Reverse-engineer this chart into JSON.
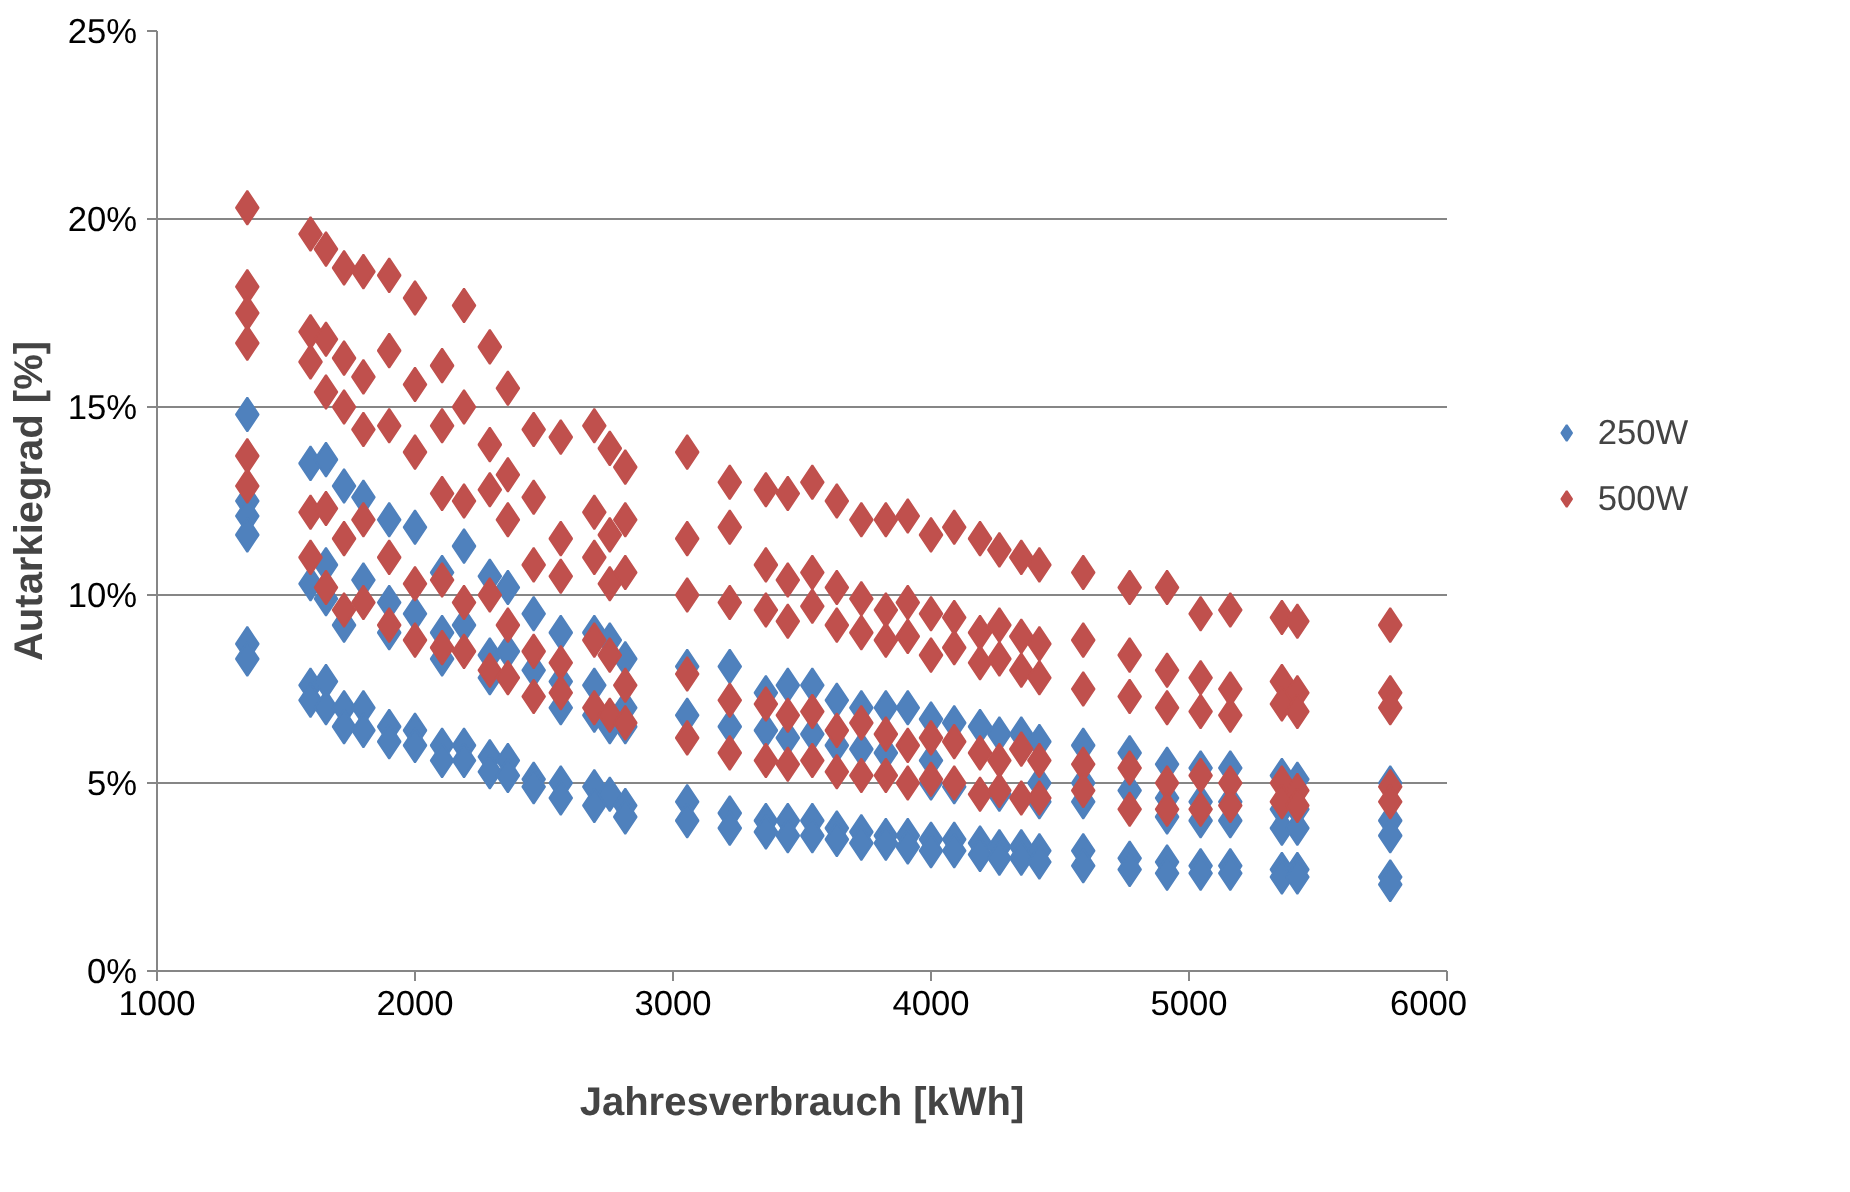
{
  "chart_data": {
    "type": "scatter",
    "xlabel": "Jahresverbrauch [kWh]",
    "ylabel": "Autarkiegrad [%]",
    "xlim": [
      1000,
      6000
    ],
    "xticks": [
      1000,
      2000,
      3000,
      4000,
      5000,
      6000
    ],
    "ylim": [
      0,
      25
    ],
    "yticks": [
      {
        "value": 0,
        "label": "0%"
      },
      {
        "value": 5,
        "label": "5%"
      },
      {
        "value": 10,
        "label": "10%"
      },
      {
        "value": 15,
        "label": "15%"
      },
      {
        "value": 20,
        "label": "20%"
      },
      {
        "value": 25,
        "label": "25%"
      }
    ],
    "grid": "y",
    "legend": "right",
    "marker": "diamond",
    "x": [
      1350,
      1350,
      1350,
      1350,
      1350,
      1350,
      1595,
      1595,
      1595,
      1595,
      1595,
      1655,
      1655,
      1655,
      1655,
      1655,
      1725,
      1725,
      1725,
      1725,
      1725,
      1800,
      1800,
      1800,
      1800,
      1800,
      1900,
      1900,
      1900,
      1900,
      1900,
      2000,
      2000,
      2000,
      2000,
      2000,
      2105,
      2105,
      2105,
      2105,
      2105,
      2190,
      2190,
      2190,
      2190,
      2190,
      2290,
      2290,
      2290,
      2290,
      2290,
      2360,
      2360,
      2360,
      2360,
      2360,
      2460,
      2460,
      2460,
      2460,
      2460,
      2565,
      2565,
      2565,
      2565,
      2565,
      2695,
      2695,
      2695,
      2695,
      2695,
      2755,
      2755,
      2755,
      2755,
      2755,
      2815,
      2815,
      2815,
      2815,
      2815,
      3055,
      3055,
      3055,
      3055,
      3055,
      3220,
      3220,
      3220,
      3220,
      3220,
      3360,
      3360,
      3360,
      3360,
      3360,
      3445,
      3445,
      3445,
      3445,
      3445,
      3540,
      3540,
      3540,
      3540,
      3540,
      3635,
      3635,
      3635,
      3635,
      3635,
      3730,
      3730,
      3730,
      3730,
      3730,
      3825,
      3825,
      3825,
      3825,
      3825,
      3910,
      3910,
      3910,
      3910,
      3910,
      4000,
      4000,
      4000,
      4000,
      4000,
      4090,
      4090,
      4090,
      4090,
      4090,
      4190,
      4190,
      4190,
      4190,
      4190,
      4265,
      4265,
      4265,
      4265,
      4265,
      4350,
      4350,
      4350,
      4350,
      4350,
      4420,
      4420,
      4420,
      4420,
      4420,
      4590,
      4590,
      4590,
      4590,
      4590,
      4770,
      4770,
      4770,
      4770,
      4770,
      4915,
      4915,
      4915,
      4915,
      4915,
      5045,
      5045,
      5045,
      5045,
      5045,
      5160,
      5160,
      5160,
      5160,
      5160,
      5360,
      5360,
      5360,
      5360,
      5360,
      5420,
      5420,
      5420,
      5420,
      5420,
      5780,
      5780,
      5780,
      5780,
      5780
    ],
    "series": [
      {
        "name": "250W",
        "color": "#4f81bd",
        "values": [
          14.8,
          12.5,
          12.1,
          11.6,
          8.7,
          8.3,
          13.5,
          null,
          10.3,
          7.6,
          7.2,
          13.6,
          10.8,
          9.9,
          7.7,
          7.0,
          12.9,
          null,
          9.2,
          7.0,
          6.5,
          12.6,
          10.4,
          null,
          7.0,
          6.4,
          12.0,
          9.8,
          9.0,
          6.5,
          6.1,
          11.8,
          9.5,
          null,
          6.4,
          6.0,
          10.6,
          9.0,
          8.3,
          6.0,
          5.6,
          11.3,
          9.2,
          null,
          6.0,
          5.6,
          10.5,
          8.4,
          7.8,
          5.7,
          5.3,
          10.2,
          8.5,
          null,
          5.6,
          5.2,
          9.5,
          8.0,
          null,
          5.1,
          4.9,
          9.0,
          7.7,
          7.0,
          5.0,
          4.6,
          9.0,
          7.6,
          6.8,
          4.9,
          4.4,
          8.8,
          null,
          6.5,
          4.7,
          null,
          8.3,
          7.0,
          6.5,
          4.4,
          4.1,
          8.1,
          6.8,
          null,
          4.5,
          4.0,
          8.1,
          6.5,
          null,
          4.2,
          3.8,
          7.4,
          6.4,
          null,
          4.0,
          3.7,
          7.6,
          6.2,
          null,
          4.0,
          3.6,
          7.6,
          6.3,
          null,
          4.0,
          3.6,
          7.2,
          6.0,
          null,
          3.8,
          3.5,
          7.0,
          5.9,
          null,
          3.7,
          3.4,
          7.0,
          5.8,
          null,
          3.6,
          3.4,
          7.0,
          null,
          null,
          3.6,
          3.3,
          6.7,
          5.6,
          5.0,
          3.5,
          3.2,
          6.6,
          null,
          4.9,
          3.5,
          3.2,
          6.5,
          null,
          null,
          3.4,
          3.1,
          6.3,
          null,
          4.7,
          3.3,
          3.0,
          6.3,
          null,
          null,
          3.3,
          3.0,
          6.1,
          5.0,
          4.5,
          3.2,
          2.9,
          6.0,
          5.0,
          4.5,
          3.2,
          2.8,
          5.8,
          4.8,
          null,
          3.0,
          2.7,
          5.5,
          4.6,
          4.1,
          2.9,
          2.6,
          5.4,
          4.5,
          4.0,
          2.8,
          2.6,
          5.4,
          4.5,
          4.0,
          2.8,
          2.6,
          5.2,
          4.3,
          3.8,
          2.7,
          2.5,
          5.1,
          4.3,
          3.8,
          2.7,
          2.5,
          5.0,
          4.0,
          3.6,
          2.5,
          2.3
        ]
      },
      {
        "name": "500W",
        "color": "#c0504d",
        "values": [
          20.3,
          18.2,
          17.5,
          16.7,
          13.7,
          12.9,
          19.6,
          17.0,
          16.2,
          12.2,
          11.0,
          19.2,
          16.8,
          15.4,
          12.3,
          10.2,
          18.7,
          16.3,
          15.0,
          11.5,
          9.6,
          18.6,
          15.8,
          14.4,
          12.0,
          9.8,
          18.5,
          16.5,
          14.5,
          11.0,
          9.2,
          17.9,
          15.6,
          13.8,
          10.3,
          8.8,
          16.1,
          14.5,
          12.7,
          10.4,
          8.6,
          17.7,
          15.0,
          12.5,
          9.8,
          8.5,
          16.6,
          14.0,
          12.8,
          10.0,
          8.0,
          15.5,
          13.2,
          12.0,
          9.2,
          7.8,
          14.4,
          12.6,
          10.8,
          8.5,
          7.3,
          14.2,
          11.5,
          10.5,
          8.2,
          7.4,
          14.5,
          12.2,
          11.0,
          8.8,
          7.0,
          13.9,
          11.6,
          10.3,
          8.4,
          6.8,
          13.4,
          12.0,
          10.6,
          7.6,
          6.6,
          13.8,
          11.5,
          10.0,
          7.9,
          6.2,
          13.0,
          11.8,
          9.8,
          7.2,
          5.8,
          12.8,
          10.8,
          9.6,
          7.1,
          5.6,
          12.7,
          10.4,
          9.3,
          6.8,
          5.5,
          13.0,
          10.6,
          9.7,
          6.9,
          5.6,
          12.5,
          10.2,
          9.2,
          6.4,
          5.3,
          12.0,
          9.9,
          9.0,
          6.6,
          5.2,
          12.0,
          9.6,
          8.8,
          6.3,
          5.2,
          12.1,
          9.8,
          8.9,
          6.0,
          5.0,
          11.6,
          9.5,
          8.4,
          6.2,
          5.1,
          11.8,
          9.4,
          8.6,
          6.1,
          5.0,
          11.5,
          9.0,
          8.2,
          5.8,
          4.7,
          11.2,
          9.2,
          8.3,
          5.6,
          4.8,
          11.0,
          8.9,
          8.0,
          5.9,
          4.6,
          10.8,
          8.7,
          7.8,
          5.6,
          4.6,
          10.6,
          8.8,
          7.5,
          5.5,
          4.8,
          10.2,
          8.4,
          7.3,
          5.4,
          4.3,
          10.2,
          8.0,
          7.0,
          5.0,
          4.3,
          9.5,
          7.8,
          6.9,
          5.2,
          4.3,
          9.6,
          7.5,
          6.8,
          5.0,
          4.4,
          9.4,
          7.7,
          7.1,
          5.0,
          4.5,
          9.3,
          7.4,
          6.9,
          4.8,
          4.4,
          9.2,
          7.4,
          7.0,
          4.9,
          4.5
        ]
      }
    ]
  }
}
